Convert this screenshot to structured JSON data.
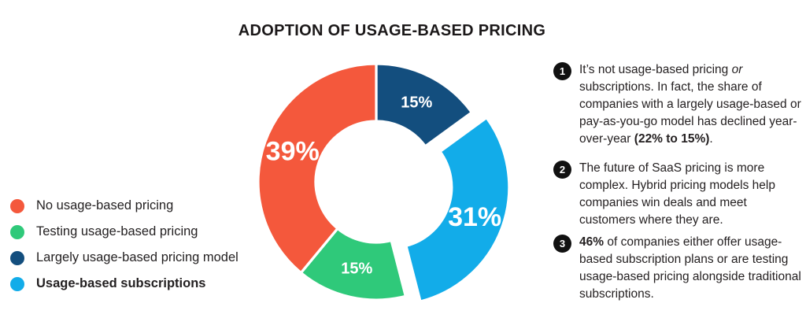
{
  "title": "ADOPTION OF USAGE-BASED PRICING",
  "chart_data": {
    "type": "pie",
    "subtype": "donut",
    "title": "ADOPTION OF USAGE-BASED PRICING",
    "rotation": "clockwise-from-top",
    "legend_position": "left",
    "slices": [
      {
        "label": "Largely usage-based pricing model",
        "value": 15,
        "display": "15%",
        "color": "#134E7E",
        "exploded": false
      },
      {
        "label": "Usage-based subscriptions",
        "value": 31,
        "display": "31%",
        "color": "#12ACE9",
        "exploded": true
      },
      {
        "label": "Testing usage-based pricing",
        "value": 15,
        "display": "15%",
        "color": "#2FC97A",
        "exploded": false
      },
      {
        "label": "No usage-based pricing",
        "value": 39,
        "display": "39%",
        "color": "#F4583C",
        "exploded": false
      }
    ]
  },
  "legend": {
    "items": [
      {
        "label": "No usage-based pricing",
        "color": "#F4583C",
        "bold": false
      },
      {
        "label": "Testing usage-based pricing",
        "color": "#2FC97A",
        "bold": false
      },
      {
        "label": "Largely usage-based pricing model",
        "color": "#134E7E",
        "bold": false
      },
      {
        "label": "Usage-based subscriptions",
        "color": "#12ACE9",
        "bold": true
      }
    ]
  },
  "annotations": [
    {
      "number": "1",
      "parts": [
        {
          "text": "It’s not usage-based pricing ",
          "style": "normal"
        },
        {
          "text": "or",
          "style": "italic"
        },
        {
          "text": " subscriptions. In fact, the share of companies with a largely usage-based or pay-as-you-go model has declined year-over-year ",
          "style": "normal"
        },
        {
          "text": "(22% to 15%)",
          "style": "bold"
        },
        {
          "text": ".",
          "style": "normal"
        }
      ]
    },
    {
      "number": "2",
      "parts": [
        {
          "text": "The future of SaaS pricing is more complex. Hybrid pricing models help companies win deals and meet customers where they are.",
          "style": "normal"
        }
      ]
    },
    {
      "number": "3",
      "parts": [
        {
          "text": "46%",
          "style": "bold"
        },
        {
          "text": " of companies either offer usage-based subscription plans or are testing usage-based pricing alongside traditional subscriptions.",
          "style": "normal"
        }
      ]
    }
  ]
}
